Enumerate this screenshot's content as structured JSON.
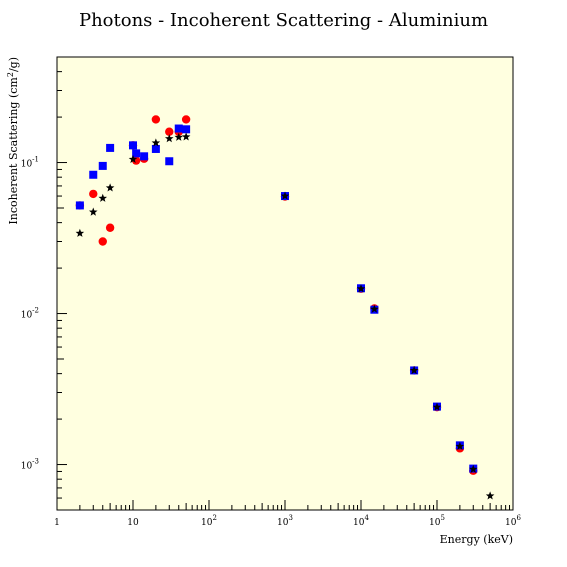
{
  "chart_data": {
    "type": "scatter",
    "title": "Photons - Incoherent Scattering - Aluminium",
    "xlabel": "Energy (keV)",
    "ylabel_base": "Incoherent Scattering (cm",
    "ylabel_sup": "2",
    "ylabel_tail": "/g)",
    "x_scale": "log",
    "y_scale": "log",
    "xlim": [
      1,
      1000000
    ],
    "ylim": [
      0.0005,
      0.5
    ],
    "plot_background": "#ffffe0",
    "grid": false,
    "x_ticks": [
      {
        "value": 1,
        "base": "1",
        "exp": ""
      },
      {
        "value": 10,
        "base": "10",
        "exp": ""
      },
      {
        "value": 100,
        "base": "10",
        "exp": "2"
      },
      {
        "value": 1000,
        "base": "10",
        "exp": "3"
      },
      {
        "value": 10000,
        "base": "10",
        "exp": "4"
      },
      {
        "value": 100000,
        "base": "10",
        "exp": "5"
      },
      {
        "value": 1000000,
        "base": "10",
        "exp": "6"
      }
    ],
    "y_ticks": [
      {
        "value": 0.1,
        "base": "10",
        "exp": "-1"
      },
      {
        "value": 0.01,
        "base": "10",
        "exp": "-2"
      },
      {
        "value": 0.001,
        "base": "10",
        "exp": "-3"
      }
    ],
    "series": [
      {
        "marker": "circle",
        "color": "#ff0000",
        "points": [
          [
            2,
            0.052
          ],
          [
            3,
            0.062
          ],
          [
            4,
            0.03
          ],
          [
            5,
            0.037
          ],
          [
            10,
            0.13
          ],
          [
            11,
            0.103
          ],
          [
            14,
            0.106
          ],
          [
            20,
            0.193
          ],
          [
            30,
            0.16
          ],
          [
            40,
            0.16
          ],
          [
            50,
            0.193
          ],
          [
            1000,
            0.0595
          ],
          [
            10000,
            0.0146
          ],
          [
            15000,
            0.0108
          ],
          [
            50000,
            0.0042
          ],
          [
            100000,
            0.0024
          ],
          [
            200000,
            0.00128
          ],
          [
            300000,
            0.00091
          ]
        ]
      },
      {
        "marker": "square",
        "color": "#0000ff",
        "points": [
          [
            2,
            0.052
          ],
          [
            3,
            0.083
          ],
          [
            4,
            0.095
          ],
          [
            5,
            0.125
          ],
          [
            10,
            0.13
          ],
          [
            11,
            0.115
          ],
          [
            14,
            0.11
          ],
          [
            20,
            0.123
          ],
          [
            30,
            0.102
          ],
          [
            40,
            0.168
          ],
          [
            50,
            0.166
          ],
          [
            1000,
            0.06
          ],
          [
            10000,
            0.0147
          ],
          [
            15000,
            0.0106
          ],
          [
            50000,
            0.0042
          ],
          [
            100000,
            0.00242
          ],
          [
            200000,
            0.00134
          ],
          [
            300000,
            0.00094
          ]
        ]
      },
      {
        "marker": "star",
        "color": "#000000",
        "points": [
          [
            2,
            0.034
          ],
          [
            3,
            0.047
          ],
          [
            4,
            0.058
          ],
          [
            5,
            0.068
          ],
          [
            10,
            0.105
          ],
          [
            20,
            0.135
          ],
          [
            30,
            0.144
          ],
          [
            40,
            0.147
          ],
          [
            50,
            0.148
          ],
          [
            1000,
            0.06
          ],
          [
            10000,
            0.0146
          ],
          [
            15000,
            0.0107
          ],
          [
            50000,
            0.0042
          ],
          [
            100000,
            0.0024
          ],
          [
            200000,
            0.00132
          ],
          [
            300000,
            0.00093
          ],
          [
            500000,
            0.00062
          ]
        ]
      }
    ]
  }
}
